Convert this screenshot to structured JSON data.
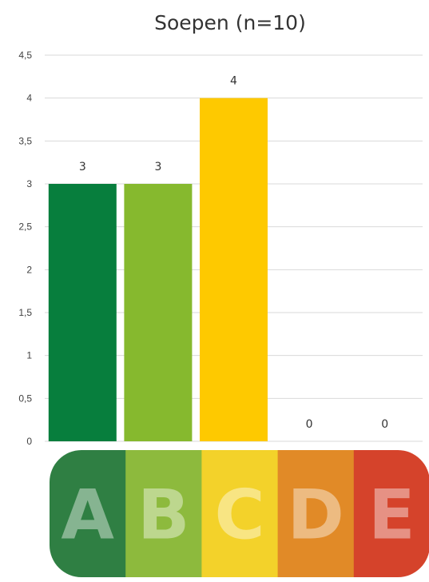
{
  "chart_data": {
    "type": "bar",
    "title": "Soepen (n=10)",
    "xlabel": "",
    "ylabel": "",
    "categories": [
      "A",
      "B",
      "C",
      "D",
      "E"
    ],
    "values": [
      3,
      3,
      4,
      0,
      0
    ],
    "value_labels": [
      "3",
      "3",
      "4",
      "0",
      "0"
    ],
    "bar_colors": [
      "#077e3d",
      "#86b92e",
      "#fec900",
      "#e07a1f",
      "#d6402a"
    ],
    "ylim": [
      0,
      4.5
    ],
    "yticks": [
      0,
      0.5,
      1,
      1.5,
      2,
      2.5,
      3,
      3.5,
      4,
      4.5
    ],
    "ytick_labels": [
      "0",
      "0,5",
      "1",
      "1,5",
      "2",
      "2,5",
      "3",
      "3,5",
      "4",
      "4,5"
    ],
    "grid": true,
    "legend": "none"
  },
  "nutriscore": {
    "letters": [
      "A",
      "B",
      "C",
      "D",
      "E"
    ],
    "colors": [
      "#2f7f43",
      "#8dba3d",
      "#f3d22a",
      "#e18a27",
      "#d5432b"
    ]
  }
}
